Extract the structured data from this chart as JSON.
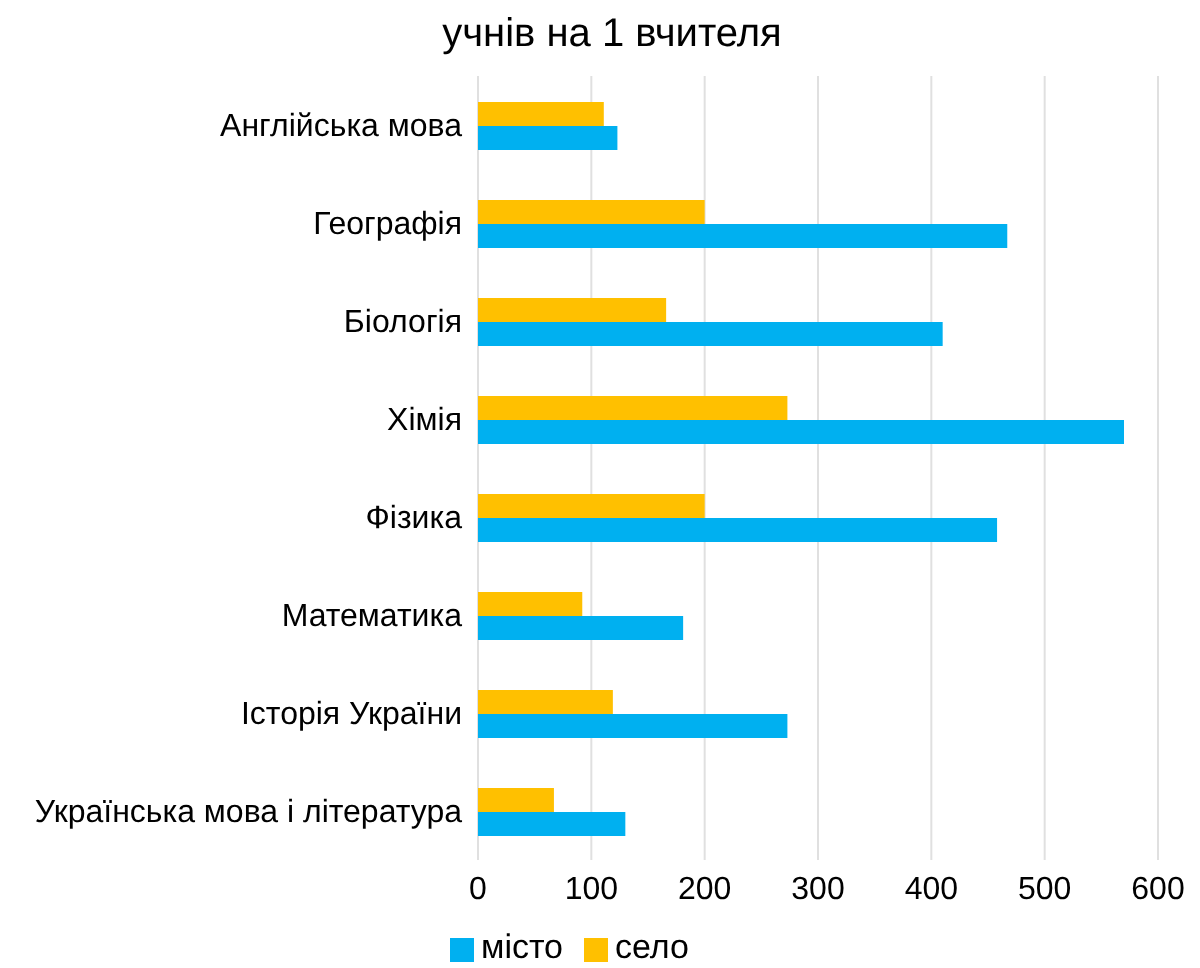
{
  "chart_data": {
    "type": "bar",
    "orientation": "horizontal",
    "title": "учнів на 1 вчителя",
    "categories": [
      "Англійська мова",
      "Географія",
      "Біологія",
      "Хімія",
      "Фізика",
      "Математика",
      "Історія України",
      "Українська мова і література"
    ],
    "series": [
      {
        "name": "село",
        "color": "#ffc000",
        "values": [
          111,
          200,
          166,
          273,
          200,
          92,
          119,
          67
        ]
      },
      {
        "name": "місто",
        "color": "#00b0f0",
        "values": [
          123,
          467,
          410,
          570,
          458,
          181,
          273,
          130
        ]
      }
    ],
    "xlim": [
      0,
      600
    ],
    "xticks": [
      0,
      100,
      200,
      300,
      400,
      500,
      600
    ],
    "grid": "x",
    "legend": "bottom"
  }
}
